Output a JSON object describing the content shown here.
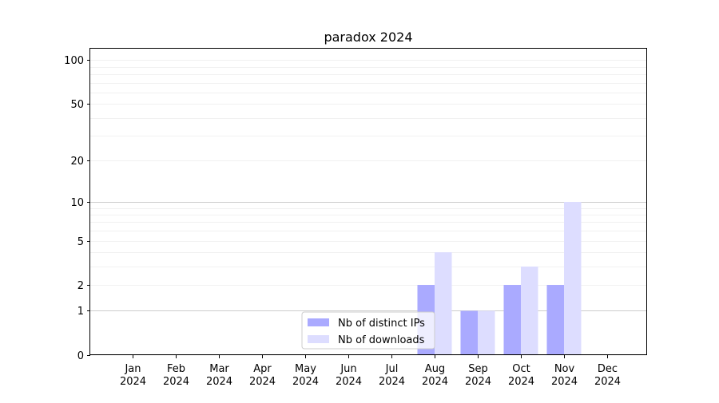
{
  "chart_data": {
    "type": "bar",
    "title": "paradox 2024",
    "xlabel": "",
    "ylabel": "",
    "y_scale": "symlog",
    "ylim": [
      0,
      120
    ],
    "y_ticks": [
      "0",
      "1",
      "2",
      "5",
      "10",
      "20",
      "50",
      "100"
    ],
    "grid": "horizontal",
    "legend_position": "lower-center",
    "categories": [
      [
        "Jan",
        "2024"
      ],
      [
        "Feb",
        "2024"
      ],
      [
        "Mar",
        "2024"
      ],
      [
        "Apr",
        "2024"
      ],
      [
        "May",
        "2024"
      ],
      [
        "Jun",
        "2024"
      ],
      [
        "Jul",
        "2024"
      ],
      [
        "Aug",
        "2024"
      ],
      [
        "Sep",
        "2024"
      ],
      [
        "Oct",
        "2024"
      ],
      [
        "Nov",
        "2024"
      ],
      [
        "Dec",
        "2024"
      ]
    ],
    "series": [
      {
        "name": "Nb of distinct IPs",
        "color": "#aaaaff",
        "values": [
          0,
          0,
          0,
          0,
          0,
          0,
          0,
          2,
          1,
          2,
          2,
          0
        ]
      },
      {
        "name": "Nb of downloads",
        "color": "#ddddff",
        "values": [
          0,
          0,
          0,
          0,
          0,
          0,
          0,
          4,
          1,
          3,
          10,
          0
        ]
      }
    ]
  }
}
